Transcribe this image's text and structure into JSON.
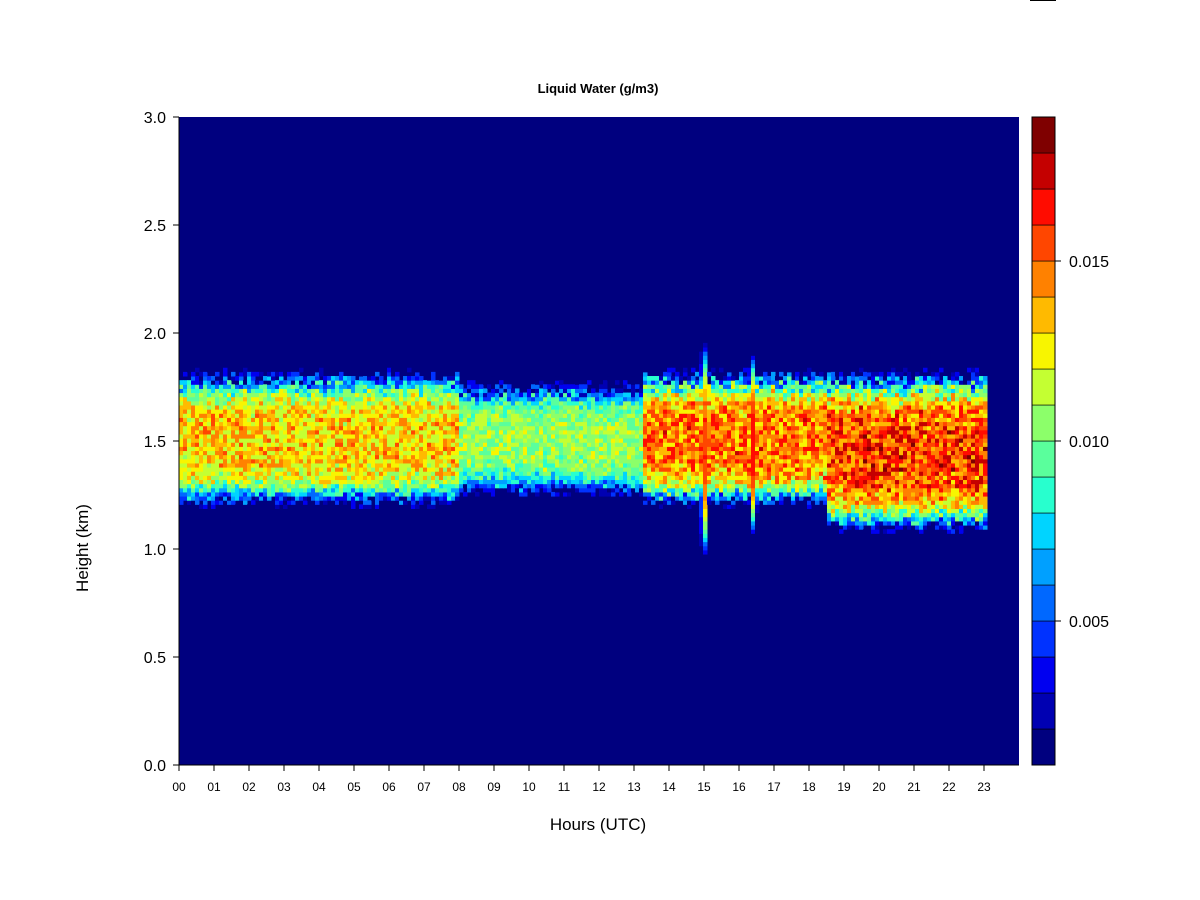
{
  "chart_data": {
    "type": "heatmap",
    "title": "Liquid Water (g/m3)",
    "xlabel": "Hours (UTC)",
    "ylabel": "Height (km)",
    "xlim": [
      0,
      24
    ],
    "ylim": [
      0,
      3
    ],
    "x_ticks": [
      "00",
      "01",
      "02",
      "03",
      "04",
      "05",
      "06",
      "07",
      "08",
      "09",
      "10",
      "11",
      "12",
      "13",
      "14",
      "15",
      "16",
      "17",
      "18",
      "19",
      "20",
      "21",
      "22",
      "23"
    ],
    "y_ticks": [
      "0.0",
      "0.5",
      "1.0",
      "1.5",
      "2.0",
      "2.5",
      "3.0"
    ],
    "colorbar": {
      "min": 0.001,
      "max": 0.019,
      "step": 0.001,
      "tick_labels": [
        "0.005",
        "0.010",
        "0.015"
      ],
      "colors": [
        "#00007f",
        "#0000b2",
        "#0000f0",
        "#0032ff",
        "#0068ff",
        "#00a0ff",
        "#00d4ff",
        "#28ffce",
        "#5aff9c",
        "#8cff6a",
        "#c4ff32",
        "#f8f500",
        "#ffba00",
        "#ff8100",
        "#ff4600",
        "#ff0c00",
        "#c40000",
        "#7f0000"
      ]
    },
    "background_value": 0.001,
    "cloud_layer": {
      "time_segments": [
        {
          "start": 0.0,
          "end": 8.0,
          "base_km": 1.2,
          "top_km": 1.8,
          "peak": 0.0135
        },
        {
          "start": 8.0,
          "end": 13.2,
          "base_km": 1.25,
          "top_km": 1.75,
          "peak": 0.011
        },
        {
          "start": 13.2,
          "end": 18.5,
          "base_km": 1.2,
          "top_km": 1.8,
          "peak": 0.015
        },
        {
          "start": 18.5,
          "end": 23.0,
          "base_km": 1.08,
          "top_km": 1.8,
          "peak": 0.016
        }
      ],
      "spikes": [
        {
          "hour": 14.95,
          "base_km": 0.95,
          "top_km": 1.95,
          "peak": 0.0185
        },
        {
          "hour": 16.35,
          "base_km": 1.05,
          "top_km": 1.9,
          "peak": 0.0175
        }
      ]
    }
  }
}
